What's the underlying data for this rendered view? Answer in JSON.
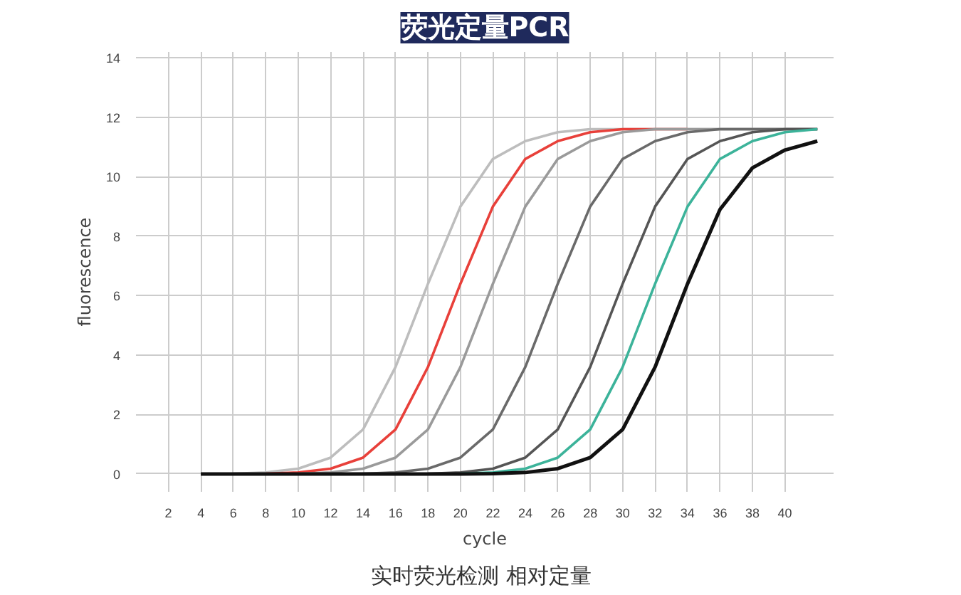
{
  "chart_data": {
    "type": "line",
    "title": "荧光定量PCR",
    "xlabel": "cycle",
    "ylabel": "fluorescence",
    "annotations": [
      "实时荧光检测  相对定量"
    ],
    "x": [
      4,
      6,
      8,
      10,
      12,
      14,
      16,
      18,
      20,
      22,
      24,
      26,
      28,
      30,
      32,
      34,
      36,
      38,
      40,
      42
    ],
    "series": [
      {
        "color": "#bdbdbd",
        "values": [
          0,
          0.01,
          0.05,
          0.18,
          0.55,
          1.5,
          3.6,
          6.4,
          9.0,
          10.6,
          11.2,
          11.5,
          11.6,
          11.6,
          11.6,
          11.6,
          11.6,
          11.6,
          11.6,
          11.6
        ]
      },
      {
        "color": "#e8403a",
        "values": [
          0,
          0,
          0.01,
          0.05,
          0.18,
          0.55,
          1.5,
          3.6,
          6.4,
          9.0,
          10.6,
          11.2,
          11.5,
          11.6,
          11.6,
          11.6,
          null,
          null,
          null,
          null
        ]
      },
      {
        "color": "#9a9a9a",
        "values": [
          0,
          0,
          0,
          0.01,
          0.05,
          0.18,
          0.55,
          1.5,
          3.6,
          6.4,
          9.0,
          10.6,
          11.2,
          11.5,
          11.6,
          11.6,
          11.6,
          11.6,
          11.6,
          11.6
        ]
      },
      {
        "color": "#6a6a6a",
        "values": [
          0,
          0,
          0,
          0,
          0,
          0.01,
          0.05,
          0.18,
          0.55,
          1.5,
          3.6,
          6.4,
          9.0,
          10.6,
          11.2,
          11.5,
          11.6,
          11.6,
          11.6,
          11.6
        ]
      },
      {
        "color": "#555555",
        "values": [
          0,
          0,
          0,
          0,
          0,
          0,
          0,
          0.01,
          0.05,
          0.18,
          0.55,
          1.5,
          3.6,
          6.4,
          9.0,
          10.6,
          11.2,
          11.5,
          11.6,
          11.6
        ]
      },
      {
        "color": "#3cb39a",
        "values": [
          null,
          null,
          null,
          null,
          null,
          null,
          null,
          null,
          0.01,
          0.05,
          0.18,
          0.55,
          1.5,
          3.6,
          6.4,
          9.0,
          10.6,
          11.2,
          11.5,
          11.6
        ]
      },
      {
        "color": "#111111",
        "values": [
          0,
          0,
          0,
          0,
          0,
          0,
          0,
          0,
          0,
          0.01,
          0.05,
          0.18,
          0.55,
          1.5,
          3.6,
          6.4,
          8.9,
          10.3,
          10.9,
          11.2
        ]
      }
    ],
    "xlim": [
      0,
      43
    ],
    "ylim": [
      -0.6,
      14.2
    ],
    "xticks": [
      2,
      4,
      6,
      8,
      10,
      12,
      14,
      16,
      18,
      20,
      22,
      24,
      26,
      28,
      30,
      32,
      34,
      36,
      38,
      40
    ],
    "yticks": [
      0,
      2,
      4,
      6,
      8,
      10,
      12,
      14
    ],
    "grid": true,
    "marker": "none",
    "line_style": "solid"
  }
}
